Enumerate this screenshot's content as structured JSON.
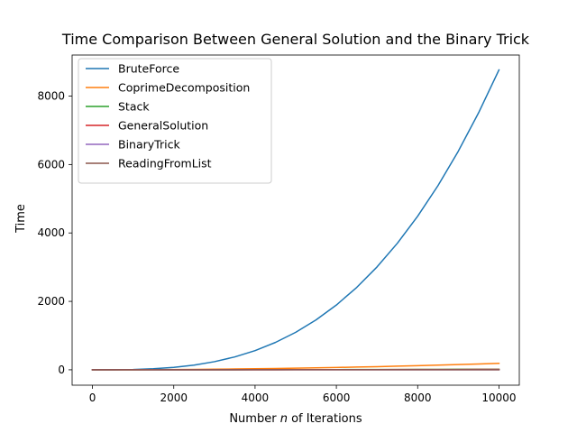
{
  "chart_data": {
    "type": "line",
    "title": "Time Comparison Between General Solution and the Binary Trick",
    "xlabel_prefix": "Number ",
    "xlabel_var": "n",
    "xlabel_suffix": " of Iterations",
    "ylabel": "Time",
    "xlim": [
      -500,
      10500
    ],
    "ylim": [
      -450,
      9200
    ],
    "x_ticks": [
      0,
      2000,
      4000,
      6000,
      8000,
      10000
    ],
    "y_ticks": [
      0,
      2000,
      4000,
      6000,
      8000
    ],
    "legend_position": "top-left",
    "grid": false,
    "x": [
      0,
      500,
      1000,
      1500,
      2000,
      2500,
      3000,
      3500,
      4000,
      4500,
      5000,
      5500,
      6000,
      6500,
      7000,
      7500,
      8000,
      8500,
      9000,
      9500,
      10000
    ],
    "series": [
      {
        "name": "BruteForce",
        "color": "#1f77b4",
        "values": [
          0,
          1,
          9,
          30,
          70,
          137,
          237,
          376,
          561,
          799,
          1096,
          1458,
          1893,
          2407,
          3006,
          3698,
          4488,
          5383,
          6390,
          7515,
          8765
        ]
      },
      {
        "name": "CoprimeDecomposition",
        "color": "#ff7f0e",
        "values": [
          0,
          0.5,
          2,
          4,
          8,
          12,
          17,
          23,
          30,
          38,
          47,
          57,
          68,
          80,
          92,
          106,
          120,
          136,
          152,
          170,
          190
        ]
      },
      {
        "name": "Stack",
        "color": "#2ca02c",
        "values": [
          0,
          0.1,
          0.3,
          0.6,
          1,
          1.5,
          2,
          2.6,
          3.2,
          4,
          4.8,
          5.6,
          6.5,
          7.5,
          8.5,
          9.6,
          10.8,
          12,
          13.3,
          14.6,
          16
        ]
      },
      {
        "name": "GeneralSolution",
        "color": "#d62728",
        "values": [
          0,
          0.1,
          0.2,
          0.4,
          0.7,
          1,
          1.4,
          1.8,
          2.3,
          2.8,
          3.4,
          4,
          4.6,
          5.3,
          6,
          6.8,
          7.6,
          8.4,
          9.3,
          10.2,
          11
        ]
      },
      {
        "name": "BinaryTrick",
        "color": "#9467bd",
        "values": [
          0,
          0,
          0.1,
          0.1,
          0.2,
          0.2,
          0.3,
          0.3,
          0.4,
          0.4,
          0.5,
          0.5,
          0.6,
          0.6,
          0.7,
          0.7,
          0.8,
          0.8,
          0.9,
          0.9,
          1
        ]
      },
      {
        "name": "ReadingFromList",
        "color": "#8c564b",
        "values": [
          0,
          0,
          0,
          0,
          0.1,
          0.1,
          0.1,
          0.1,
          0.2,
          0.2,
          0.2,
          0.2,
          0.3,
          0.3,
          0.3,
          0.3,
          0.4,
          0.4,
          0.4,
          0.4,
          0.5
        ]
      }
    ]
  }
}
